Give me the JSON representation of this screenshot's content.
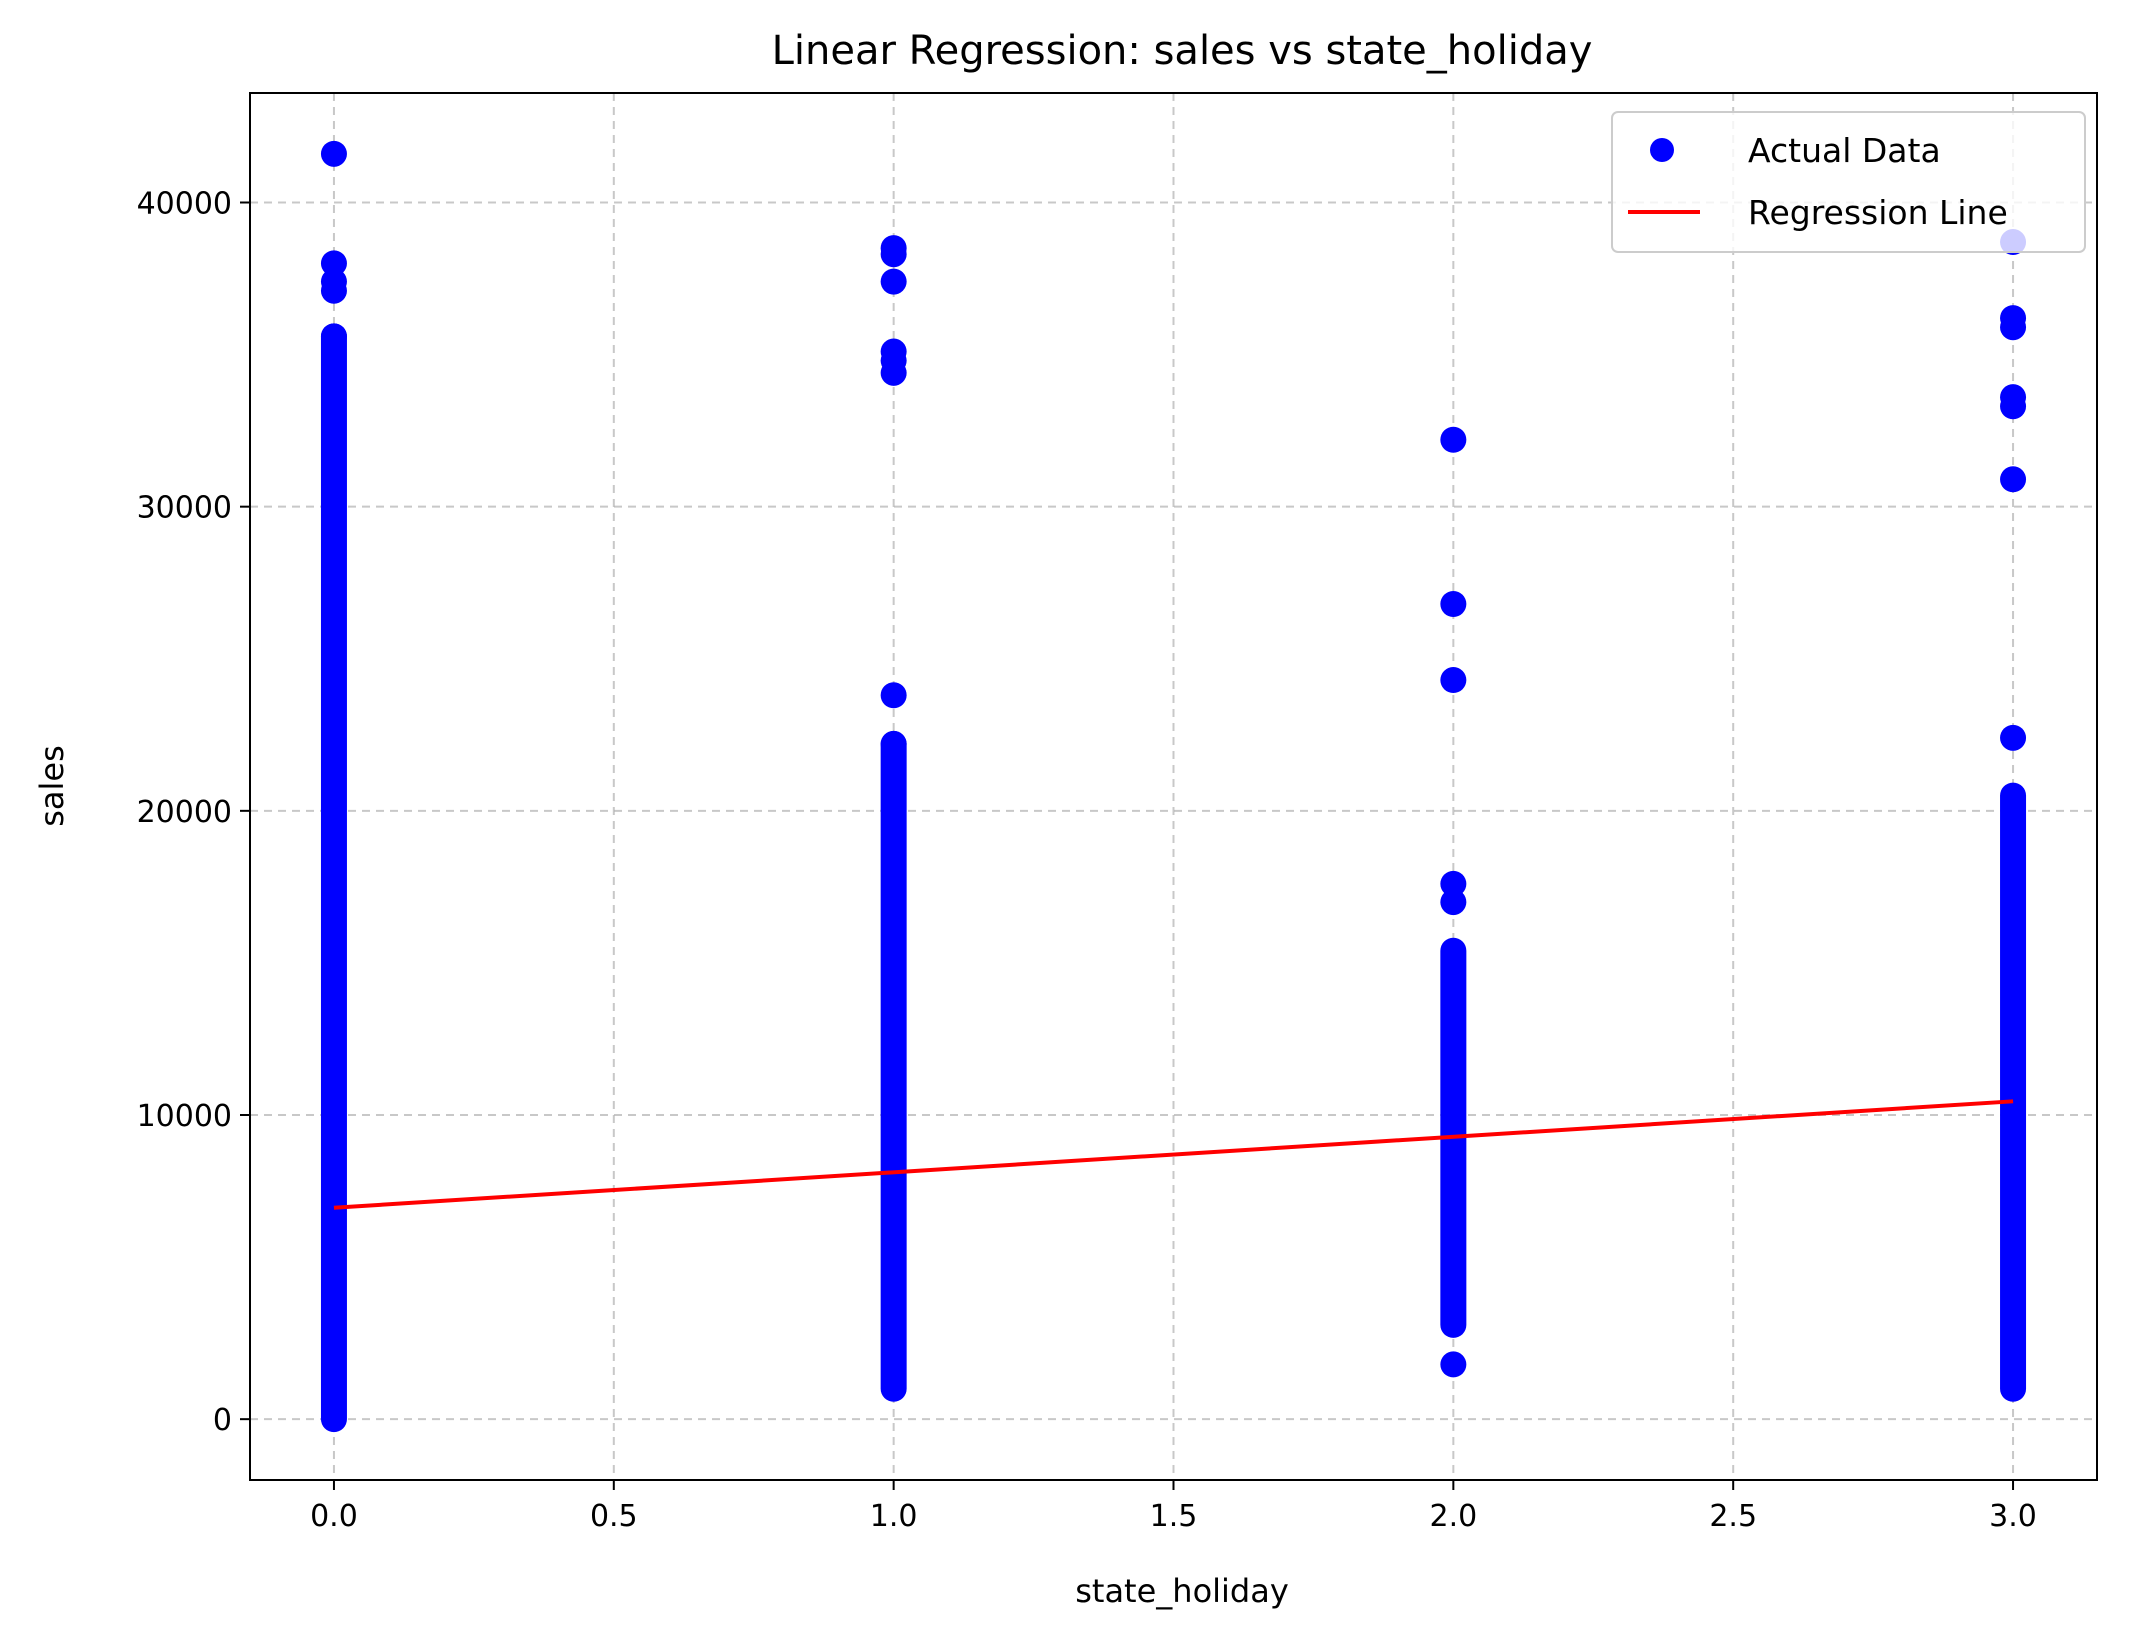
{
  "chart_data": {
    "type": "scatter",
    "title": "Linear Regression: sales vs state_holiday",
    "xlabel": "state_holiday",
    "ylabel": "sales",
    "xlim": [
      -0.15,
      3.15
    ],
    "ylim": [
      -2000,
      43600
    ],
    "xticks": [
      0.0,
      0.5,
      1.0,
      1.5,
      2.0,
      2.5,
      3.0
    ],
    "xtick_labels": [
      "0.0",
      "0.5",
      "1.0",
      "1.5",
      "2.0",
      "2.5",
      "3.0"
    ],
    "yticks": [
      0,
      10000,
      20000,
      30000,
      40000
    ],
    "ytick_labels": [
      "0",
      "10000",
      "20000",
      "30000",
      "40000"
    ],
    "grid": true,
    "legend_position": "top-right",
    "colors": {
      "points": "#0000ff",
      "line": "#ff0000",
      "grid": "#b0b0b0"
    },
    "series": [
      {
        "name": "Actual Data",
        "kind": "scatter",
        "groups": [
          {
            "x": 0,
            "range": [
              0,
              35600
            ],
            "outliers": [
              41600,
              38000,
              37400,
              37100,
              35600
            ]
          },
          {
            "x": 1,
            "range": [
              1000,
              22200
            ],
            "outliers": [
              38500,
              38300,
              37400,
              35100,
              34800,
              34400,
              23800,
              22200
            ]
          },
          {
            "x": 2,
            "range": [
              3100,
              15400
            ],
            "outliers": [
              32200,
              26800,
              24300,
              17600,
              17000,
              1800
            ]
          },
          {
            "x": 3,
            "range": [
              1000,
              20500
            ],
            "outliers": [
              38700,
              36200,
              35900,
              33600,
              33300,
              30900,
              22400
            ]
          }
        ]
      },
      {
        "name": "Regression Line",
        "kind": "line",
        "x": [
          0,
          3
        ],
        "y": [
          6950,
          10450
        ]
      }
    ]
  }
}
